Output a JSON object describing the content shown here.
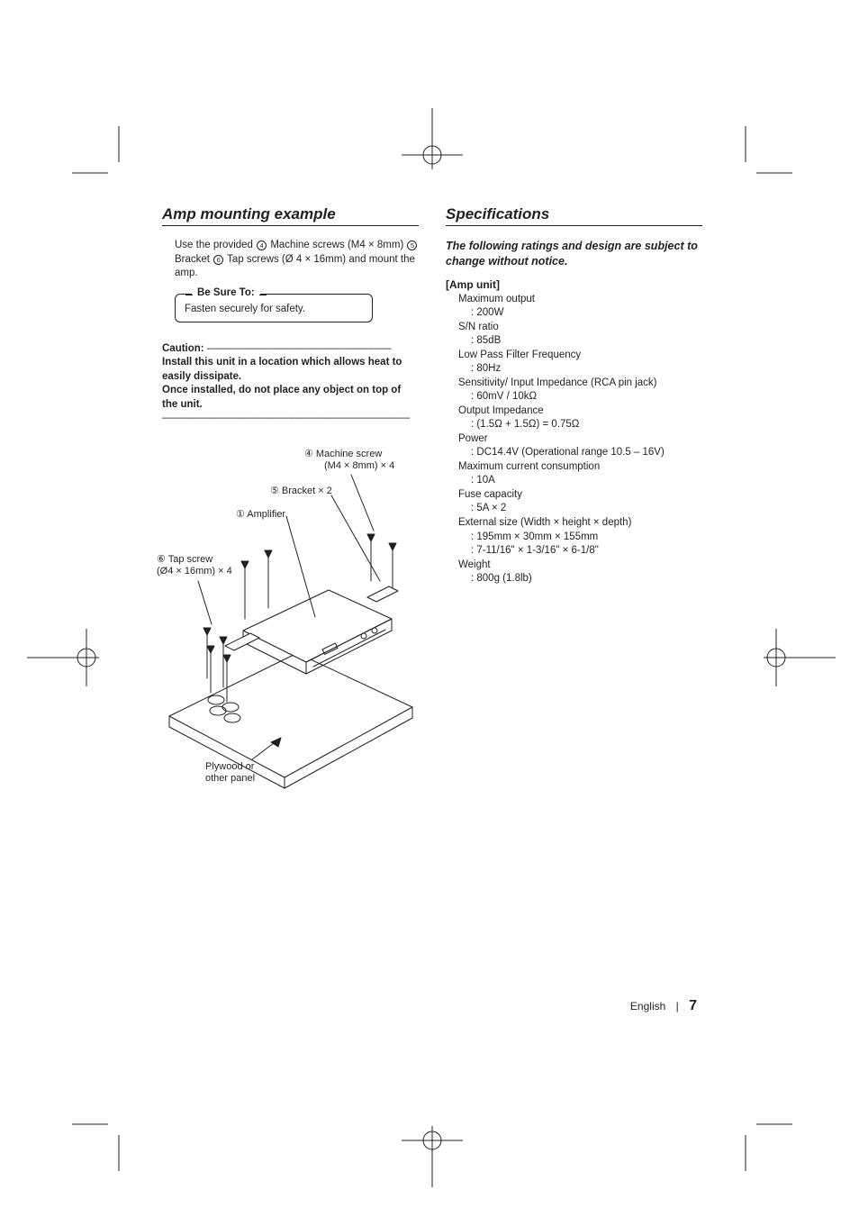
{
  "left": {
    "heading": "Amp mounting example",
    "intro_pre": "Use the provided ",
    "intro_mid1": " Machine screws (M4 × 8mm) ",
    "intro_mid2": "  Bracket ",
    "intro_post": " Tap screws (Ø 4 × 16mm) and mount the amp.",
    "circ4": "4",
    "circ5": "5",
    "circ6": "6",
    "besure_label": "Be Sure To:",
    "besure_text": "Fasten securely for safety.",
    "caution_label": "Caution:",
    "caution_dashes": " ––––––––––––––––––––––––––––––––",
    "caution_line1": "Install this unit in a location which allows heat to easily dissipate.",
    "caution_line2": "Once installed, do not place any object on top of the unit.",
    "caution_rule": "–––––––––––––––––––––––––––––––––––––––––––",
    "callouts": {
      "c4a": "④ Machine screw",
      "c4b": "(M4 × 8mm) × 4",
      "c5": "⑤ Bracket × 2",
      "c1": "① Amplifier",
      "c6a": "⑥ Tap screw",
      "c6b": "(Ø4 × 16mm) × 4",
      "plywood1": "Plywood or",
      "plywood2": "other panel"
    }
  },
  "right": {
    "heading": "Specifications",
    "notice": "The following ratings and design are subject to change without notice.",
    "section_label": "[Amp unit]",
    "specs": [
      {
        "label": "Maximum output",
        "value": ": 200W"
      },
      {
        "label": "S/N ratio",
        "value": ": 85dB"
      },
      {
        "label": "Low Pass Filter Frequency",
        "value": ": 80Hz"
      },
      {
        "label": "Sensitivity/ Input Impedance (RCA pin jack)",
        "value": ": 60mV / 10kΩ"
      },
      {
        "label": "Output Impedance",
        "value": ": (1.5Ω + 1.5Ω) = 0.75Ω"
      },
      {
        "label": "Power",
        "value": ": DC14.4V (Operational range 10.5 – 16V)"
      },
      {
        "label": "Maximum current consumption",
        "value": ": 10A"
      },
      {
        "label": "Fuse capacity",
        "value": ": 5A × 2"
      },
      {
        "label": "External size (Width × height × depth)",
        "value": ": 195mm × 30mm × 155mm",
        "value2": ": 7-11/16\" × 1-3/16\" × 6-1/8\""
      },
      {
        "label": "Weight",
        "value": ": 800g (1.8lb)"
      }
    ]
  },
  "footer": {
    "lang": "English",
    "bar": "|",
    "page": "7"
  },
  "colors": {
    "text": "#231f20",
    "bg": "#ffffff"
  }
}
